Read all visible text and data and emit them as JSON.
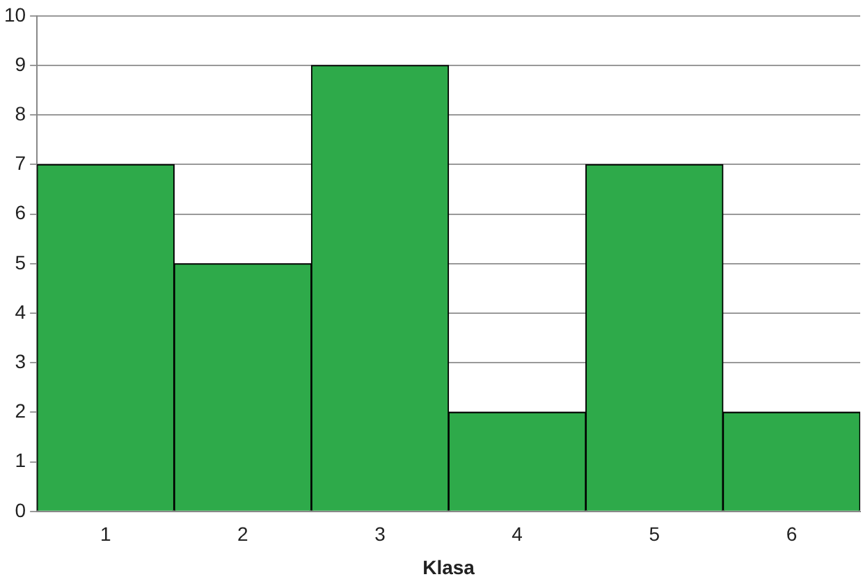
{
  "chart_data": {
    "type": "bar",
    "xlabel": "Klasa",
    "categories": [
      "1",
      "2",
      "3",
      "4",
      "5",
      "6"
    ],
    "values": [
      7,
      5,
      9,
      2,
      7,
      2
    ],
    "color": "#2eaa4a",
    "ylim": [
      0,
      10
    ],
    "yticks": [
      0,
      1,
      2,
      3,
      4,
      5,
      6,
      7,
      8,
      9,
      10
    ],
    "grid": "y",
    "legend": false
  }
}
